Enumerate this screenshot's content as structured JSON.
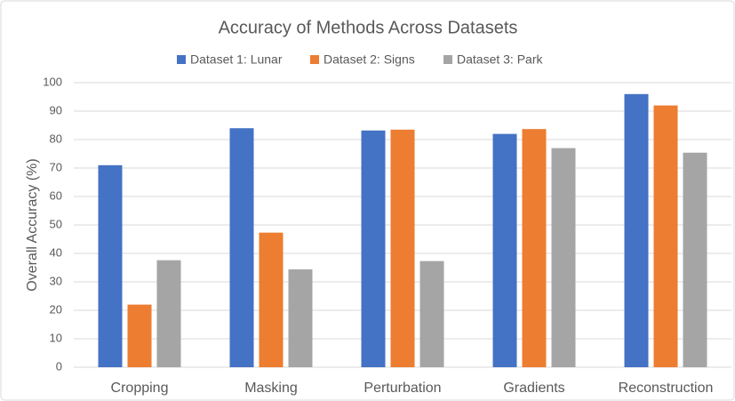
{
  "chart_data": {
    "type": "bar",
    "title": "Accuracy of Methods Across Datasets",
    "y_label": "Overall Accuracy (%)",
    "categories": [
      "Cropping",
      "Masking",
      "Perturbation",
      "Gradients",
      "Reconstruction"
    ],
    "series": [
      {
        "name": "Dataset 1: Lunar",
        "color": "#4472c4",
        "values": [
          71,
          84,
          83.2,
          82,
          96
        ]
      },
      {
        "name": "Dataset 2: Signs",
        "color": "#ed7d31",
        "values": [
          22,
          47.3,
          83.5,
          83.7,
          92
        ]
      },
      {
        "name": "Dataset 3: Park",
        "color": "#a5a5a5",
        "values": [
          37.6,
          34.4,
          37.3,
          77,
          75.4
        ]
      }
    ],
    "ylim": [
      0,
      100
    ],
    "yticks": [
      0,
      10,
      20,
      30,
      40,
      50,
      60,
      70,
      80,
      90,
      100
    ],
    "grid": true,
    "legend": "top"
  }
}
